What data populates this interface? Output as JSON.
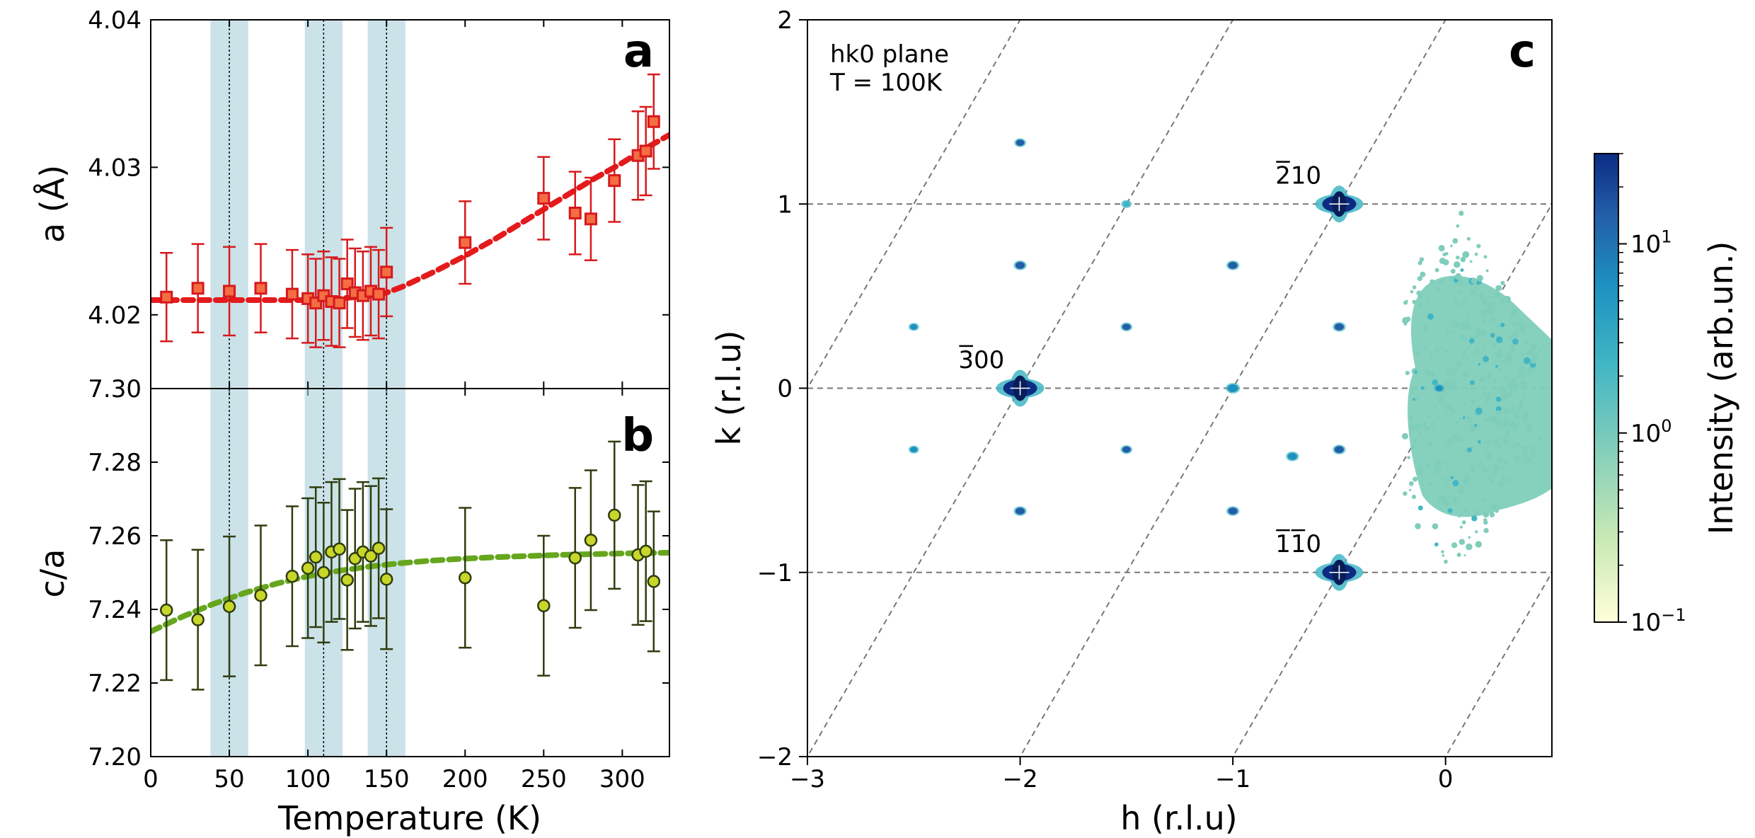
{
  "chart_data": [
    {
      "panel": "a",
      "type": "scatter",
      "panel_label": "a",
      "xlabel": "",
      "ylabel": "a (Å)",
      "xlim": [
        0,
        330
      ],
      "ylim": [
        4.015,
        4.04
      ],
      "yticks": [
        4.02,
        4.03,
        4.04
      ],
      "ytick_labels": [
        "4.02",
        "4.03",
        "4.04"
      ],
      "bottom_tick_label": "7.30",
      "marker": "square",
      "marker_color": "#e41a1c",
      "highlight_bands": [
        [
          38,
          62
        ],
        [
          98,
          122
        ],
        [
          138,
          162
        ]
      ],
      "band_color": "#a8cfd8",
      "vlines": [
        50,
        110,
        150
      ],
      "points": [
        {
          "x": 10,
          "y": 4.0212,
          "err": 0.003
        },
        {
          "x": 30,
          "y": 4.0218,
          "err": 0.003
        },
        {
          "x": 50,
          "y": 4.0216,
          "err": 0.003
        },
        {
          "x": 70,
          "y": 4.0218,
          "err": 0.003
        },
        {
          "x": 90,
          "y": 4.0214,
          "err": 0.003
        },
        {
          "x": 100,
          "y": 4.0211,
          "err": 0.003
        },
        {
          "x": 105,
          "y": 4.0208,
          "err": 0.003
        },
        {
          "x": 110,
          "y": 4.0213,
          "err": 0.003
        },
        {
          "x": 115,
          "y": 4.0209,
          "err": 0.003
        },
        {
          "x": 120,
          "y": 4.0208,
          "err": 0.003
        },
        {
          "x": 125,
          "y": 4.0221,
          "err": 0.003
        },
        {
          "x": 130,
          "y": 4.0215,
          "err": 0.003
        },
        {
          "x": 135,
          "y": 4.0213,
          "err": 0.003
        },
        {
          "x": 140,
          "y": 4.0216,
          "err": 0.003
        },
        {
          "x": 145,
          "y": 4.0214,
          "err": 0.003
        },
        {
          "x": 150,
          "y": 4.0229,
          "err": 0.003
        },
        {
          "x": 200,
          "y": 4.0249,
          "err": 0.0028
        },
        {
          "x": 250,
          "y": 4.0279,
          "err": 0.0028
        },
        {
          "x": 270,
          "y": 4.0269,
          "err": 0.0028
        },
        {
          "x": 280,
          "y": 4.0265,
          "err": 0.0028
        },
        {
          "x": 295,
          "y": 4.0291,
          "err": 0.0028
        },
        {
          "x": 310,
          "y": 4.0308,
          "err": 0.003
        },
        {
          "x": 315,
          "y": 4.0311,
          "err": 0.003
        },
        {
          "x": 320,
          "y": 4.0331,
          "err": 0.0032
        }
      ],
      "fit": {
        "color": "#e41a1c",
        "x": [
          0,
          20,
          40,
          60,
          80,
          100,
          120,
          140,
          150,
          160,
          180,
          200,
          220,
          240,
          260,
          280,
          300,
          315,
          330
        ],
        "y": [
          4.021,
          4.021,
          4.021,
          4.021,
          4.021,
          4.021,
          4.0211,
          4.0213,
          4.0215,
          4.0219,
          4.0229,
          4.024,
          4.0252,
          4.0265,
          4.0278,
          4.0291,
          4.0303,
          4.0313,
          4.0322
        ]
      }
    },
    {
      "panel": "b",
      "type": "scatter",
      "panel_label": "b",
      "xlabel": "Temperature (K)",
      "ylabel": "c/a",
      "xlim": [
        0,
        330
      ],
      "ylim": [
        7.2,
        7.3
      ],
      "xticks": [
        0,
        50,
        100,
        150,
        200,
        250,
        300
      ],
      "xtick_labels": [
        "0",
        "50",
        "100",
        "150",
        "200",
        "250",
        "300"
      ],
      "yticks": [
        7.2,
        7.22,
        7.24,
        7.26,
        7.28
      ],
      "ytick_labels": [
        "7.20",
        "7.22",
        "7.24",
        "7.26",
        "7.28"
      ],
      "marker": "circle",
      "marker_color": "#c8d62a",
      "error_color": "#2f3d0f",
      "highlight_bands": [
        [
          38,
          62
        ],
        [
          98,
          122
        ],
        [
          138,
          162
        ]
      ],
      "vlines": [
        50,
        110,
        150
      ],
      "points": [
        {
          "x": 10,
          "y": 7.2398,
          "err": 0.019
        },
        {
          "x": 30,
          "y": 7.2372,
          "err": 0.019
        },
        {
          "x": 50,
          "y": 7.2408,
          "err": 0.019
        },
        {
          "x": 70,
          "y": 7.2438,
          "err": 0.019
        },
        {
          "x": 90,
          "y": 7.249,
          "err": 0.019
        },
        {
          "x": 100,
          "y": 7.2512,
          "err": 0.019
        },
        {
          "x": 105,
          "y": 7.2542,
          "err": 0.019
        },
        {
          "x": 110,
          "y": 7.25,
          "err": 0.019
        },
        {
          "x": 115,
          "y": 7.2556,
          "err": 0.019
        },
        {
          "x": 120,
          "y": 7.2564,
          "err": 0.019
        },
        {
          "x": 125,
          "y": 7.248,
          "err": 0.019
        },
        {
          "x": 130,
          "y": 7.2538,
          "err": 0.019
        },
        {
          "x": 135,
          "y": 7.2556,
          "err": 0.019
        },
        {
          "x": 140,
          "y": 7.2545,
          "err": 0.019
        },
        {
          "x": 145,
          "y": 7.2566,
          "err": 0.019
        },
        {
          "x": 150,
          "y": 7.2482,
          "err": 0.019
        },
        {
          "x": 200,
          "y": 7.2486,
          "err": 0.019
        },
        {
          "x": 250,
          "y": 7.241,
          "err": 0.019
        },
        {
          "x": 270,
          "y": 7.254,
          "err": 0.019
        },
        {
          "x": 280,
          "y": 7.2588,
          "err": 0.019
        },
        {
          "x": 295,
          "y": 7.2656,
          "err": 0.02
        },
        {
          "x": 310,
          "y": 7.2548,
          "err": 0.019
        },
        {
          "x": 315,
          "y": 7.2558,
          "err": 0.019
        },
        {
          "x": 320,
          "y": 7.2476,
          "err": 0.019
        }
      ],
      "fit": {
        "color": "#66a61e",
        "x": [
          0,
          20,
          40,
          60,
          80,
          100,
          120,
          140,
          160,
          180,
          200,
          220,
          240,
          260,
          280,
          300,
          330
        ],
        "y": [
          7.234,
          7.238,
          7.2415,
          7.2445,
          7.247,
          7.249,
          7.2505,
          7.2517,
          7.2526,
          7.2533,
          7.2538,
          7.2542,
          7.2545,
          7.2548,
          7.255,
          7.2552,
          7.2554
        ]
      }
    },
    {
      "panel": "c",
      "type": "heatmap",
      "panel_label": "c",
      "xlabel": "h (r.l.u)",
      "ylabel": "k (r.l.u)",
      "xlim": [
        -3,
        0.5
      ],
      "ylim": [
        -2,
        2
      ],
      "xticks": [
        -3,
        -2,
        -1,
        0
      ],
      "xtick_labels": [
        "−3",
        "−2",
        "−1",
        "0"
      ],
      "yticks": [
        -2,
        -1,
        0,
        1,
        2
      ],
      "ytick_labels": [
        "−2",
        "−1",
        "0",
        "1",
        "2"
      ],
      "annotation_lines": [
        "hk0 plane",
        "T = 100K"
      ],
      "peak_labels": [
        {
          "h": -2.29,
          "k": 0.11,
          "text": "300"
        },
        {
          "h": -0.8,
          "k": 1.11,
          "text": "210"
        },
        {
          "h": -0.8,
          "k": -0.89,
          "text": "110"
        }
      ],
      "colorbar": {
        "label": "Intensity (arb.un.)",
        "scale": "log",
        "range": [
          0.1,
          30
        ],
        "ticks": [
          {
            "value": 0.1,
            "base": "10",
            "exp": "−1"
          },
          {
            "value": 1,
            "base": "10",
            "exp": "0"
          },
          {
            "value": 10,
            "base": "10",
            "exp": "1"
          }
        ],
        "colors": [
          "#ffffd9",
          "#c7e9b4",
          "#7fcdbb",
          "#41b6c4",
          "#1d91c0",
          "#225ea8",
          "#0c2c84"
        ]
      },
      "spots": [
        {
          "h": -2.0,
          "k": 0.0,
          "intensity": 30,
          "size": 1.6
        },
        {
          "h": -0.5,
          "k": 1.0,
          "intensity": 30,
          "size": 1.6
        },
        {
          "h": -0.5,
          "k": -1.0,
          "intensity": 30,
          "size": 1.6
        },
        {
          "h": -2.0,
          "k": 1.333,
          "intensity": 8,
          "size": 0.7
        },
        {
          "h": -1.5,
          "k": 1.0,
          "intensity": 2,
          "size": 0.6
        },
        {
          "h": -2.0,
          "k": 0.667,
          "intensity": 12,
          "size": 0.8
        },
        {
          "h": -1.0,
          "k": 0.667,
          "intensity": 12,
          "size": 0.8
        },
        {
          "h": -2.5,
          "k": 0.333,
          "intensity": 3,
          "size": 0.6
        },
        {
          "h": -1.5,
          "k": 0.333,
          "intensity": 8,
          "size": 0.7
        },
        {
          "h": -0.5,
          "k": 0.333,
          "intensity": 12,
          "size": 0.8
        },
        {
          "h": -1.0,
          "k": 0.0,
          "intensity": 4,
          "size": 0.9
        },
        {
          "h": -0.03,
          "k": 0.0,
          "intensity": 3,
          "size": 0.6
        },
        {
          "h": -2.5,
          "k": -0.333,
          "intensity": 3,
          "size": 0.6
        },
        {
          "h": -1.5,
          "k": -0.333,
          "intensity": 8,
          "size": 0.7
        },
        {
          "h": -0.5,
          "k": -0.333,
          "intensity": 12,
          "size": 0.8
        },
        {
          "h": -0.72,
          "k": -0.37,
          "intensity": 6,
          "size": 0.8
        },
        {
          "h": -2.0,
          "k": -0.667,
          "intensity": 12,
          "size": 0.8
        },
        {
          "h": -1.0,
          "k": -0.667,
          "intensity": 12,
          "size": 0.8
        }
      ]
    }
  ]
}
